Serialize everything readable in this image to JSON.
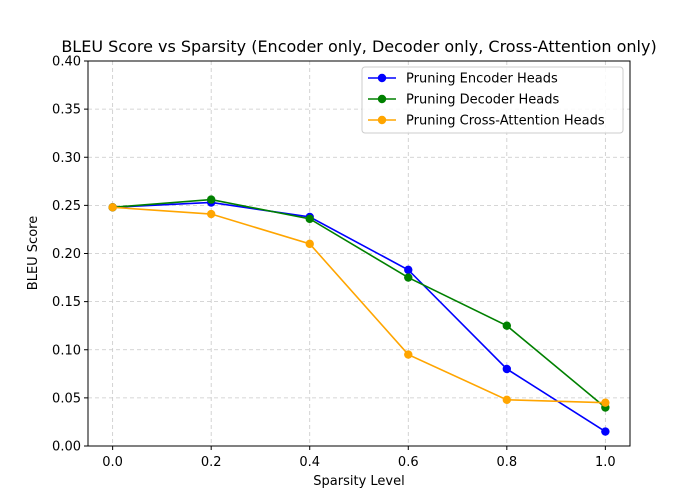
{
  "chart_data": {
    "type": "line",
    "title": "BLEU Score vs Sparsity (Encoder only, Decoder only, Cross-Attention only)",
    "xlabel": "Sparsity Level",
    "ylabel": "BLEU Score",
    "x": [
      0.0,
      0.2,
      0.4,
      0.6,
      0.8,
      1.0
    ],
    "xlim": [
      -0.05,
      1.05
    ],
    "ylim": [
      0.0,
      0.4
    ],
    "xticks": [
      "0.0",
      "0.2",
      "0.4",
      "0.6",
      "0.8",
      "1.0"
    ],
    "yticks": [
      "0.00",
      "0.05",
      "0.10",
      "0.15",
      "0.20",
      "0.25",
      "0.30",
      "0.35",
      "0.40"
    ],
    "grid": true,
    "legend_position": "top-right",
    "series": [
      {
        "name": "Pruning Encoder Heads",
        "color": "#0000ff",
        "values": [
          0.248,
          0.253,
          0.238,
          0.183,
          0.08,
          0.015
        ]
      },
      {
        "name": "Pruning Decoder Heads",
        "color": "#008000",
        "values": [
          0.248,
          0.256,
          0.236,
          0.175,
          0.125,
          0.04
        ]
      },
      {
        "name": "Pruning Cross-Attention Heads",
        "color": "#ffa500",
        "values": [
          0.248,
          0.241,
          0.21,
          0.095,
          0.048,
          0.045
        ]
      }
    ]
  }
}
